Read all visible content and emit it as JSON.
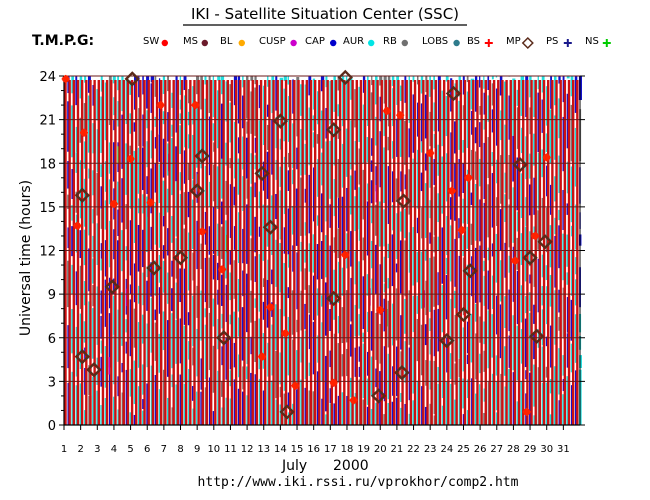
{
  "chart_data": {
    "type": "scatter",
    "title": "IKI - Satellite Situation Center (SSC)",
    "subtitle": "T.M.P.G:",
    "ylabel": "Universal time (hours)",
    "xlabel_month": "July",
    "xlabel_year": "2000",
    "footer": "http://www.iki.rssi.ru/vprokhor/comp2.htm",
    "ylim": [
      0,
      24
    ],
    "yticks": [
      0,
      3,
      6,
      9,
      12,
      15,
      18,
      21,
      24
    ],
    "xlim": [
      1,
      32
    ],
    "xticks": [
      1,
      2,
      3,
      4,
      5,
      6,
      7,
      8,
      9,
      10,
      11,
      12,
      13,
      14,
      15,
      16,
      17,
      18,
      19,
      20,
      21,
      22,
      23,
      24,
      25,
      26,
      27,
      28,
      29,
      30,
      31
    ],
    "legend": [
      {
        "label": "SW",
        "color": "#ff0000",
        "marker": "dot"
      },
      {
        "label": "MS",
        "color": "#6b1a2a",
        "marker": "dot"
      },
      {
        "label": "BL",
        "color": "#ffaa00",
        "marker": "dot"
      },
      {
        "label": "CUSP",
        "color": "#cc00cc",
        "marker": "dot"
      },
      {
        "label": "CAP",
        "color": "#0000cc",
        "marker": "dot"
      },
      {
        "label": "AUR",
        "color": "#00e5e5",
        "marker": "dot"
      },
      {
        "label": "RB",
        "color": "#707070",
        "marker": "dot"
      },
      {
        "label": "LOBS",
        "color": "#2e7b8c",
        "marker": "dot"
      },
      {
        "label": "BS",
        "color": "#ff0000",
        "marker": "cross"
      },
      {
        "label": "MP",
        "color": "#5a2a1a",
        "marker": "diamond"
      },
      {
        "label": "PS",
        "color": "#1a1a8c",
        "marker": "cross"
      },
      {
        "label": "NS",
        "color": "#00cc00",
        "marker": "cross"
      }
    ],
    "colors": {
      "band_red": "#cc1111",
      "band_cyan": "#22dddd",
      "band_blue": "#1111cc",
      "band_gray": "#777777",
      "band_green": "#33cc33",
      "band_purple": "#aa00cc",
      "bs_marker": "#ff2200",
      "mp_marker": "#5a2a1a"
    },
    "bs_crossings": [
      {
        "x": 1.1,
        "y": 23.8
      },
      {
        "x": 1.8,
        "y": 13.7
      },
      {
        "x": 2.2,
        "y": 20.1
      },
      {
        "x": 4.0,
        "y": 15.2
      },
      {
        "x": 5.0,
        "y": 18.3
      },
      {
        "x": 6.2,
        "y": 15.3
      },
      {
        "x": 6.8,
        "y": 22.0
      },
      {
        "x": 8.9,
        "y": 22.0
      },
      {
        "x": 9.3,
        "y": 13.3
      },
      {
        "x": 10.5,
        "y": 10.7
      },
      {
        "x": 12.9,
        "y": 4.7
      },
      {
        "x": 13.4,
        "y": 8.1
      },
      {
        "x": 14.3,
        "y": 6.3
      },
      {
        "x": 14.9,
        "y": 2.7
      },
      {
        "x": 17.2,
        "y": 2.9
      },
      {
        "x": 17.9,
        "y": 11.7
      },
      {
        "x": 18.4,
        "y": 1.7
      },
      {
        "x": 20.0,
        "y": 7.9
      },
      {
        "x": 20.4,
        "y": 21.6
      },
      {
        "x": 21.2,
        "y": 21.3
      },
      {
        "x": 23.0,
        "y": 18.7
      },
      {
        "x": 24.3,
        "y": 16.1
      },
      {
        "x": 24.9,
        "y": 13.4
      },
      {
        "x": 25.3,
        "y": 17.0
      },
      {
        "x": 28.1,
        "y": 11.3
      },
      {
        "x": 28.8,
        "y": 0.9
      },
      {
        "x": 29.3,
        "y": 13.0
      },
      {
        "x": 30.0,
        "y": 18.4
      }
    ],
    "mp_crossings": [
      {
        "x": 2.1,
        "y": 15.8
      },
      {
        "x": 2.1,
        "y": 4.7
      },
      {
        "x": 2.8,
        "y": 3.8
      },
      {
        "x": 3.9,
        "y": 9.5
      },
      {
        "x": 5.1,
        "y": 23.8
      },
      {
        "x": 6.4,
        "y": 10.8
      },
      {
        "x": 8.0,
        "y": 11.5
      },
      {
        "x": 9.0,
        "y": 16.1
      },
      {
        "x": 9.3,
        "y": 18.5
      },
      {
        "x": 10.6,
        "y": 6.0
      },
      {
        "x": 12.9,
        "y": 17.3
      },
      {
        "x": 13.4,
        "y": 13.6
      },
      {
        "x": 14.0,
        "y": 20.9
      },
      {
        "x": 14.4,
        "y": 0.9
      },
      {
        "x": 17.2,
        "y": 20.3
      },
      {
        "x": 17.2,
        "y": 8.7
      },
      {
        "x": 17.9,
        "y": 23.9
      },
      {
        "x": 19.9,
        "y": 2.0
      },
      {
        "x": 21.3,
        "y": 3.6
      },
      {
        "x": 21.4,
        "y": 15.4
      },
      {
        "x": 24.0,
        "y": 5.8
      },
      {
        "x": 24.4,
        "y": 22.8
      },
      {
        "x": 25.0,
        "y": 7.6
      },
      {
        "x": 25.4,
        "y": 10.6
      },
      {
        "x": 28.4,
        "y": 17.9
      },
      {
        "x": 29.0,
        "y": 11.5
      },
      {
        "x": 29.4,
        "y": 6.1
      },
      {
        "x": 29.9,
        "y": 12.6
      }
    ]
  }
}
